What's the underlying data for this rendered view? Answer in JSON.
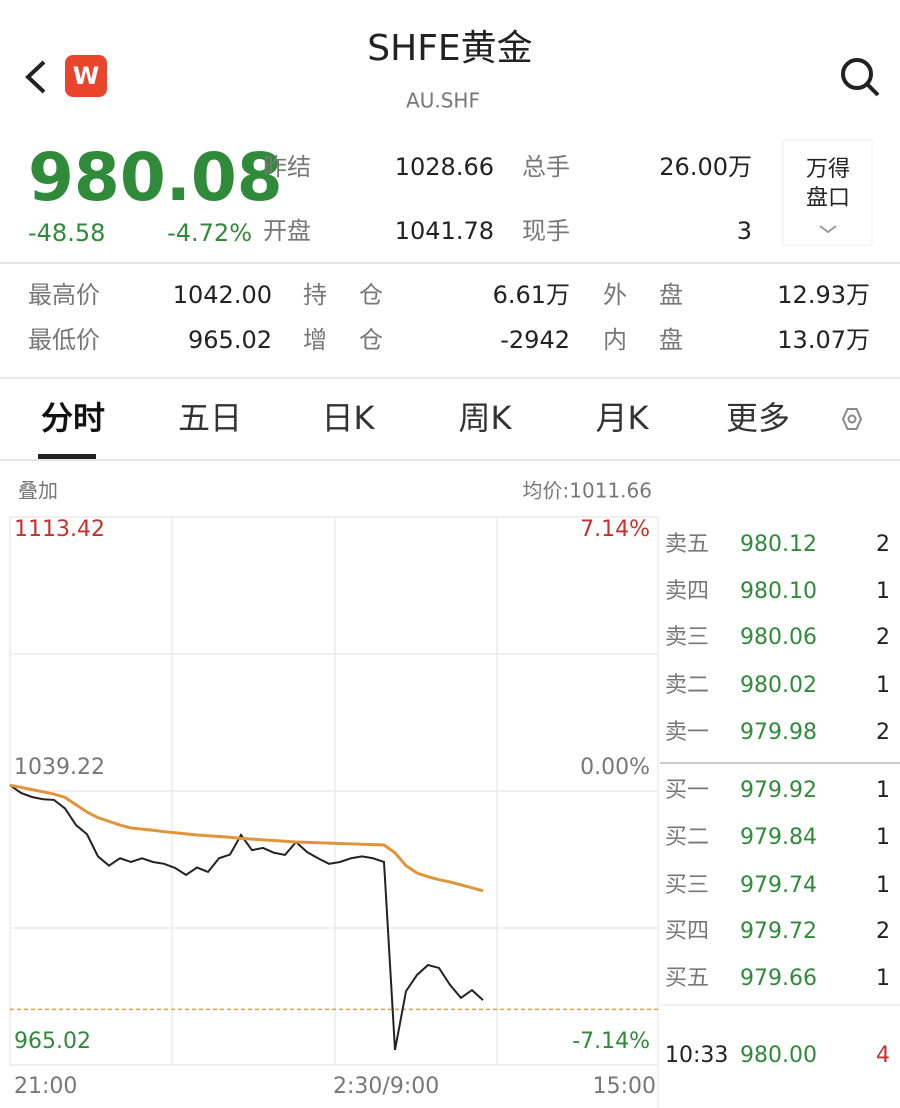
{
  "header": {
    "logo": "W",
    "title": "SHFE黄金",
    "code": "AU.SHF"
  },
  "quote": {
    "price": "980.08",
    "change": "-48.58",
    "change_pct": "-4.72%",
    "fields": [
      {
        "label": "昨结",
        "value": "1028.66"
      },
      {
        "label": "总手",
        "value": "26.00万"
      },
      {
        "label": "开盘",
        "value": "1041.78"
      },
      {
        "label": "现手",
        "value": "3"
      }
    ],
    "button": [
      "万得",
      "盘口"
    ]
  },
  "stats": [
    [
      "最高价",
      "1042.00",
      "持仓",
      "6.61万",
      "外盘",
      "12.93万"
    ],
    [
      "最低价",
      "965.02",
      "增仓",
      "-2942",
      "内盘",
      "13.07万"
    ]
  ],
  "tabs": [
    "分时",
    "五日",
    "日K",
    "周K",
    "月K",
    "更多"
  ],
  "chart_data": {
    "type": "line",
    "overlay_label": "叠加",
    "avg_label": "均价:1011.66",
    "ylim": [
      965.02,
      1113.42
    ],
    "yticks": [
      965.02,
      1039.22,
      1113.42
    ],
    "y2lim": [
      -7.14,
      7.14
    ],
    "y2ticks": [
      {
        "value": -7.14,
        "label": "-7.14%"
      },
      {
        "value": 0,
        "label": "0.00%"
      },
      {
        "value": 7.14,
        "label": "7.14%"
      }
    ],
    "x_labels": [
      "21:00",
      "2:30/9:00",
      "15:00"
    ],
    "series": [
      {
        "color": "#222222",
        "values": [
          1040.8,
          1038.7,
          1037.6,
          1037.0,
          1036.8,
          1034.5,
          1030.0,
          1027.5,
          1021.5,
          1019.0,
          1021.0,
          1020.0,
          1021.0,
          1020.0,
          1019.5,
          1018.4,
          1016.5,
          1018.5,
          1017.3,
          1021.0,
          1022.0,
          1027.3,
          1023.2,
          1023.8,
          1022.5,
          1021.9,
          1025.4,
          1022.7,
          1021.0,
          1019.5,
          1020.0,
          1021.0,
          1021.5,
          1021.0,
          1020.0,
          969.1,
          985.0,
          989.4,
          992.1,
          991.3,
          986.7,
          983.2,
          985.3,
          982.6
        ]
      },
      {
        "color": "#e0953a",
        "values": [
          1040.8,
          1040.2,
          1039.6,
          1039.0,
          1038.4,
          1037.5,
          1035.5,
          1033.5,
          1032.0,
          1031.0,
          1030.0,
          1029.2,
          1028.9,
          1028.6,
          1028.2,
          1027.9,
          1027.6,
          1027.3,
          1027.1,
          1026.9,
          1026.7,
          1026.4,
          1026.2,
          1026.0,
          1025.8,
          1025.6,
          1025.4,
          1025.3,
          1025.2,
          1025.1,
          1025.0,
          1024.9,
          1024.8,
          1024.7,
          1024.6,
          1022.5,
          1019.0,
          1017.0,
          1016.0,
          1015.2,
          1014.6,
          1013.8,
          1013.0,
          1012.2
        ]
      }
    ]
  },
  "order_book": {
    "asks": [
      {
        "label": "卖五",
        "price": "980.12",
        "qty": "2"
      },
      {
        "label": "卖四",
        "price": "980.10",
        "qty": "1"
      },
      {
        "label": "卖三",
        "price": "980.06",
        "qty": "2"
      },
      {
        "label": "卖二",
        "price": "980.02",
        "qty": "1"
      },
      {
        "label": "卖一",
        "price": "979.98",
        "qty": "2"
      }
    ],
    "bids": [
      {
        "label": "买一",
        "price": "979.92",
        "qty": "1"
      },
      {
        "label": "买二",
        "price": "979.84",
        "qty": "1"
      },
      {
        "label": "买三",
        "price": "979.74",
        "qty": "1"
      },
      {
        "label": "买四",
        "price": "979.72",
        "qty": "2"
      },
      {
        "label": "买五",
        "price": "979.66",
        "qty": "1"
      }
    ],
    "trade": {
      "time": "10:33",
      "price": "980.00",
      "qty": "4"
    }
  }
}
